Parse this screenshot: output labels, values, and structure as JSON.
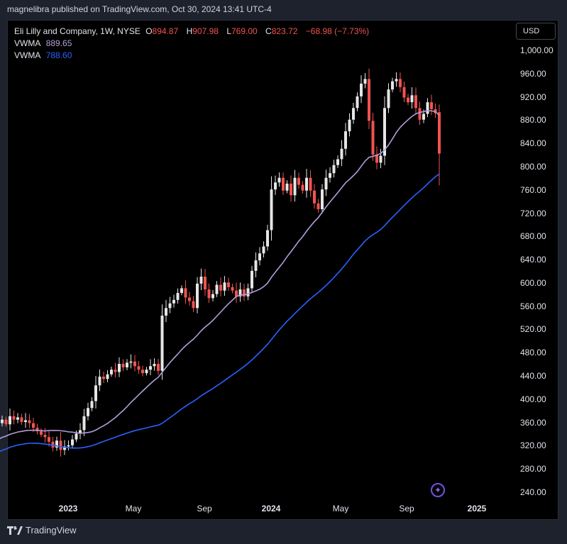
{
  "published": "magnelibra published on TradingView.com, Oct 30, 2024 13:41 UTC-4",
  "header": {
    "symbol": "Eli Lilly and Company, 1W, NYSE",
    "o_label": "O",
    "open": "894.87",
    "h_label": "H",
    "high": "907.98",
    "l_label": "L",
    "low": "769.00",
    "c_label": "C",
    "close": "823.72",
    "change": "−68.98 (−7.73%)"
  },
  "indicators": [
    {
      "name": "VWMA",
      "value": "889.65",
      "color": "#b39ddb"
    },
    {
      "name": "VWMA",
      "value": "788.60",
      "color": "#2962ff"
    }
  ],
  "currency_button": "USD",
  "brand": "TradingView",
  "colors": {
    "up": "#e6e6e6",
    "down": "#f05350",
    "vwma_fast": "#b39ddb",
    "vwma_slow": "#2962ff"
  },
  "chart_data": {
    "type": "candlestick",
    "title": "Eli Lilly and Company, 1W, NYSE",
    "ylim": [
      220,
      1010
    ],
    "y_ticks": [
      "1,000.00",
      "960.00",
      "920.00",
      "880.00",
      "840.00",
      "800.00",
      "760.00",
      "720.00",
      "680.00",
      "640.00",
      "600.00",
      "560.00",
      "520.00",
      "480.00",
      "440.00",
      "400.00",
      "360.00",
      "320.00",
      "280.00",
      "240.00"
    ],
    "x_ticks": [
      {
        "label": "2023",
        "bold": true
      },
      {
        "label": "May",
        "bold": false
      },
      {
        "label": "Sep",
        "bold": false
      },
      {
        "label": "2024",
        "bold": true
      },
      {
        "label": "May",
        "bold": false
      },
      {
        "label": "Sep",
        "bold": false
      },
      {
        "label": "2025",
        "bold": true
      }
    ],
    "weekly_closes": [
      310,
      318,
      326,
      322,
      335,
      345,
      342,
      360,
      366,
      358,
      372,
      366,
      370,
      362,
      365,
      360,
      352,
      346,
      340,
      336,
      328,
      318,
      330,
      314,
      320,
      322,
      332,
      342,
      348,
      372,
      386,
      398,
      425,
      440,
      436,
      444,
      452,
      448,
      462,
      456,
      464,
      466,
      458,
      452,
      446,
      452,
      458,
      462,
      450,
      545,
      558,
      566,
      572,
      584,
      592,
      576,
      570,
      558,
      600,
      612,
      590,
      575,
      582,
      598,
      588,
      602,
      594,
      588,
      578,
      590,
      578,
      592,
      622,
      640,
      652,
      664,
      692,
      762,
      774,
      782,
      760,
      772,
      752,
      782,
      770,
      760,
      782,
      760,
      738,
      728,
      762,
      782,
      790,
      804,
      814,
      832,
      862,
      882,
      902,
      922,
      944,
      952,
      880,
      822,
      808,
      820,
      902,
      934,
      948,
      952,
      938,
      920,
      912,
      924,
      902,
      882,
      892,
      912,
      900,
      893,
      823.72
    ],
    "last_candle": {
      "open": 894.87,
      "high": 907.98,
      "low": 769.0,
      "close": 823.72
    },
    "series": [
      {
        "name": "VWMA",
        "last": 889.65,
        "period": 20
      },
      {
        "name": "VWMA",
        "last": 788.6,
        "period": 50
      }
    ]
  }
}
